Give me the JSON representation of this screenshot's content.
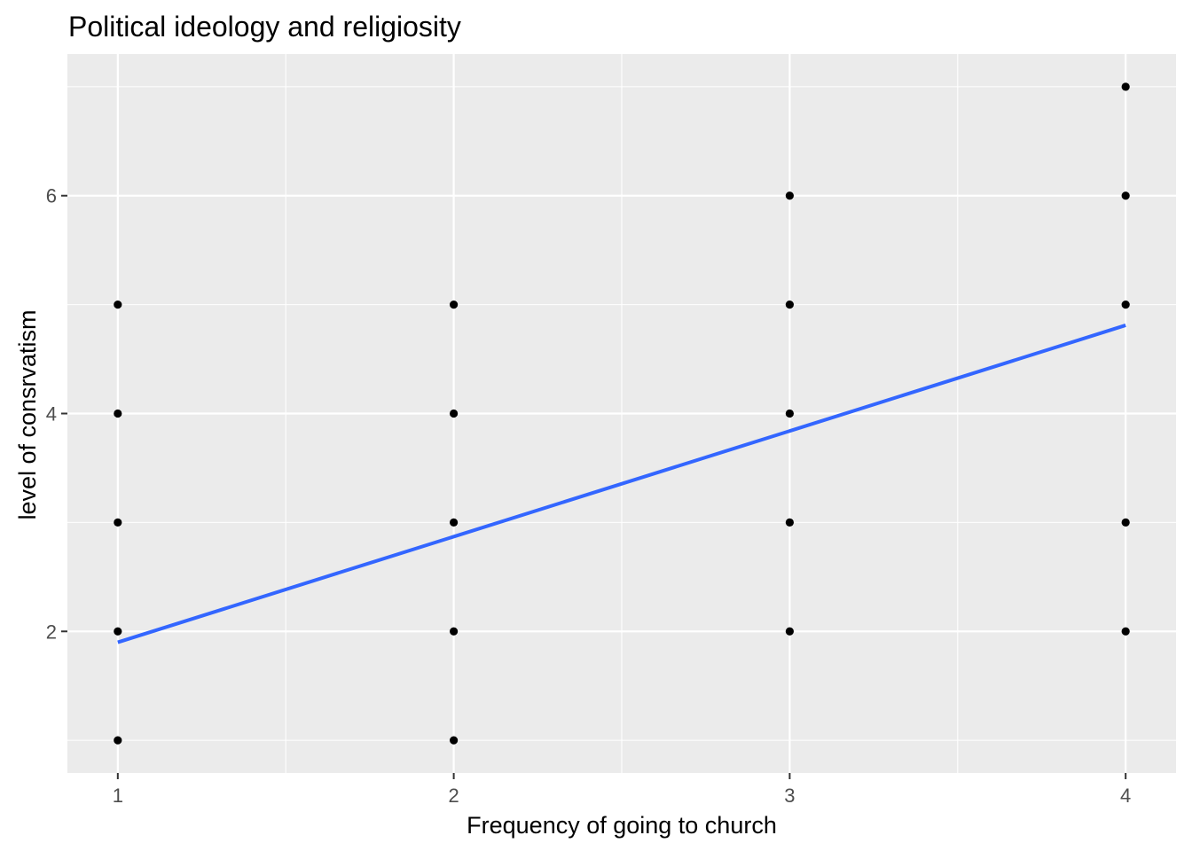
{
  "chart_data": {
    "type": "scatter",
    "title": "Political ideology and religiosity",
    "xlabel": "Frequency of going to church",
    "ylabel": "level of consrvatism",
    "xlim": [
      0.85,
      4.15
    ],
    "ylim": [
      0.7,
      7.3
    ],
    "x_ticks": [
      1,
      2,
      3,
      4
    ],
    "y_ticks": [
      2,
      4,
      6
    ],
    "grid": true,
    "legend": "none",
    "colors": {
      "panel_background": "#ebebeb",
      "grid": "#ffffff",
      "points": "#000000",
      "trend_line": "#3366ff"
    },
    "series": [
      {
        "points": [
          [
            1,
            1
          ],
          [
            1,
            2
          ],
          [
            1,
            3
          ],
          [
            1,
            4
          ],
          [
            1,
            5
          ],
          [
            2,
            1
          ],
          [
            2,
            2
          ],
          [
            2,
            3
          ],
          [
            2,
            4
          ],
          [
            2,
            5
          ],
          [
            3,
            2
          ],
          [
            3,
            3
          ],
          [
            3,
            4
          ],
          [
            3,
            5
          ],
          [
            3,
            6
          ],
          [
            4,
            2
          ],
          [
            4,
            3
          ],
          [
            4,
            5
          ],
          [
            4,
            6
          ],
          [
            4,
            7
          ]
        ]
      }
    ],
    "trend_line": {
      "type": "linear",
      "x": [
        1,
        4
      ],
      "y": [
        1.9,
        4.81
      ]
    }
  }
}
